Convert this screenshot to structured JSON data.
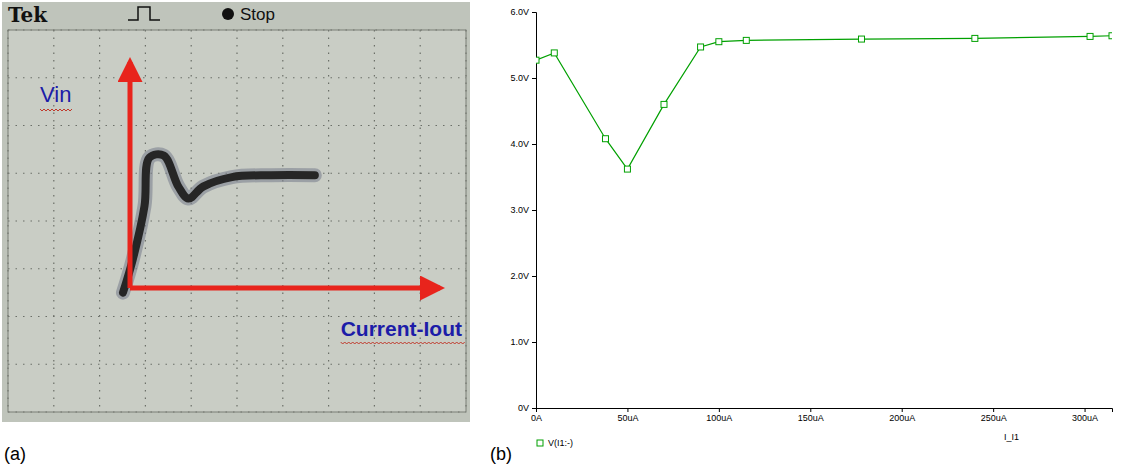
{
  "chart_data": [
    {
      "type": "line",
      "panel": "(a)",
      "annotations": [
        "Tek",
        "Stop"
      ],
      "x_label": "Current-Iout",
      "y_label": "Vin",
      "xlim": [
        0,
        10
      ],
      "ylim": [
        0,
        8
      ],
      "xticks": [
        0,
        1,
        2,
        3,
        4,
        5,
        6,
        7,
        8,
        9,
        10
      ],
      "yticks": [
        0,
        1,
        2,
        3,
        4,
        5,
        6,
        7,
        8
      ],
      "grid": true,
      "tick_labels": false,
      "color": "#262626",
      "x": [
        2.51,
        2.72,
        2.98,
        3.09,
        3.4,
        3.72,
        3.94,
        4.26,
        4.89,
        5.74,
        6.7
      ],
      "values": [
        2.5,
        3.18,
        4.31,
        5.33,
        5.37,
        4.72,
        4.47,
        4.72,
        4.92,
        4.96,
        4.96
      ]
    },
    {
      "type": "line",
      "panel": "(b)",
      "x_label": "I_I1",
      "xlim": [
        0,
        315
      ],
      "ylim": [
        0,
        6
      ],
      "xticks": [
        {
          "value": 0,
          "label": "0A"
        },
        {
          "value": 50,
          "label": "50uA"
        },
        {
          "value": 100,
          "label": "100uA"
        },
        {
          "value": 150,
          "label": "150uA"
        },
        {
          "value": 200,
          "label": "200uA"
        },
        {
          "value": 250,
          "label": "250uA"
        },
        {
          "value": 300,
          "label": "300uA"
        }
      ],
      "yticks": [
        {
          "value": 0,
          "label": "0V"
        },
        {
          "value": 1,
          "label": "1.0V"
        },
        {
          "value": 2,
          "label": "2.0V"
        },
        {
          "value": 3,
          "label": "3.0V"
        },
        {
          "value": 4,
          "label": "4.0V"
        },
        {
          "value": 5,
          "label": "5.0V"
        },
        {
          "value": 6,
          "label": "6.0V"
        }
      ],
      "legend": "bottom-left",
      "x": [
        0,
        10,
        38,
        50,
        70,
        90,
        100,
        115,
        178,
        240,
        303,
        315
      ],
      "series": [
        {
          "name": "V(I1:-)",
          "color": "#00a000",
          "marker": "square",
          "values": [
            5.27,
            5.38,
            4.08,
            3.62,
            4.6,
            5.47,
            5.55,
            5.57,
            5.59,
            5.6,
            5.63,
            5.64
          ]
        }
      ]
    }
  ]
}
